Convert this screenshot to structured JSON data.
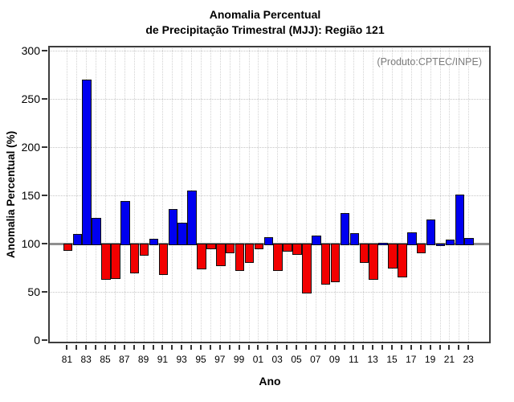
{
  "title": {
    "line1": "Anomalia Percentual",
    "line2": "de Precipitação Trimestral (MJJ): Região 121"
  },
  "annotation": "(Produto:CPTEC/INPE)",
  "chart_data": {
    "type": "bar",
    "title": "Anomalia Percentual de Precipitação Trimestral (MJJ): Região 121",
    "xlabel": "Ano",
    "ylabel": "Anomalia Percentual (%)",
    "ylim": [
      0,
      300
    ],
    "yticks": [
      0,
      50,
      100,
      150,
      200,
      250,
      300
    ],
    "baseline": 100,
    "grid": "dotted",
    "x_label_every": 2,
    "colors": {
      "above_baseline": "#0000F0",
      "below_baseline": "#F20000",
      "bar_outline": "#101010",
      "baseline_line": "#8f8f8f",
      "annotation_text": "#7b7b7b"
    },
    "categories": [
      "81",
      "82",
      "83",
      "84",
      "85",
      "86",
      "87",
      "88",
      "89",
      "90",
      "91",
      "92",
      "93",
      "94",
      "95",
      "96",
      "97",
      "98",
      "99",
      "00",
      "01",
      "02",
      "03",
      "04",
      "05",
      "06",
      "07",
      "08",
      "09",
      "10",
      "11",
      "12",
      "13",
      "14",
      "15",
      "16",
      "17",
      "18",
      "19",
      "20",
      "21",
      "22",
      "23"
    ],
    "values": [
      94,
      110,
      270,
      127,
      64,
      65,
      144,
      71,
      89,
      105,
      69,
      136,
      122,
      155,
      75,
      96,
      78,
      92,
      73,
      82,
      96,
      107,
      73,
      93,
      90,
      50,
      108,
      59,
      62,
      132,
      111,
      82,
      64,
      101,
      76,
      67,
      112,
      92,
      125,
      100,
      104,
      151,
      106
    ]
  }
}
